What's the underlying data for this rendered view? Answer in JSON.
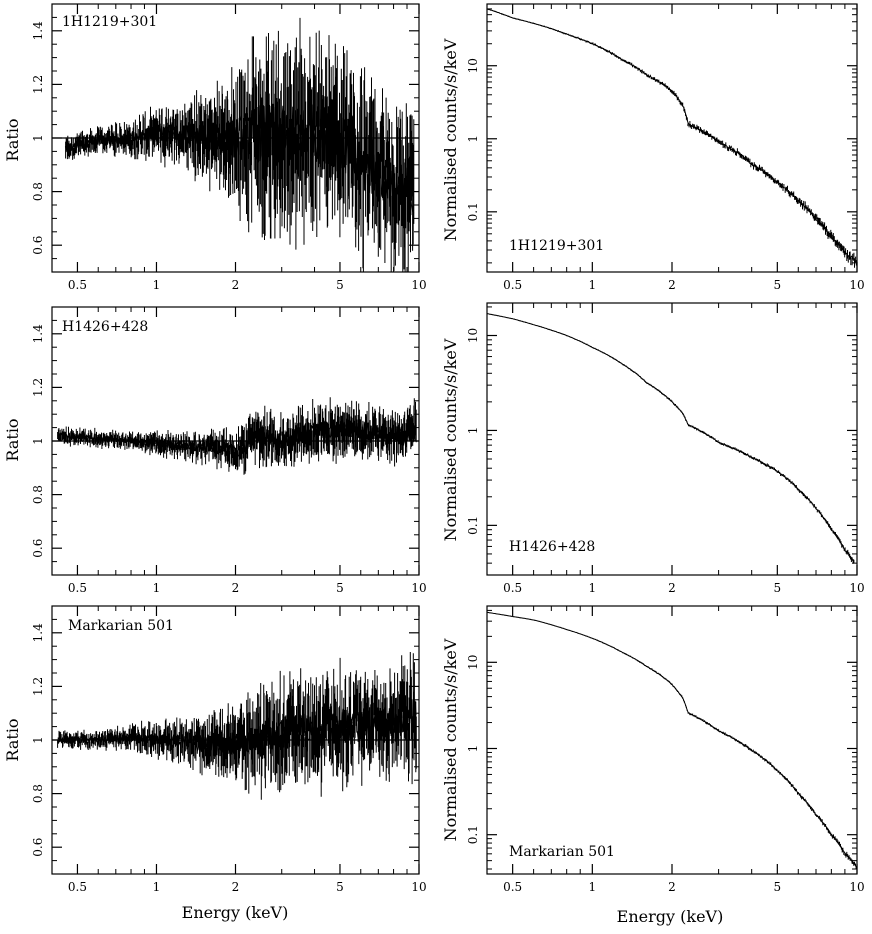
{
  "chart_data": [
    {
      "id": "ratio-1h1219",
      "type": "line",
      "source": "1H1219+301",
      "ylabel": "Ratio",
      "xlabel": "",
      "xscale": "log",
      "xlim": [
        0.4,
        10
      ],
      "ylim": [
        0.5,
        1.5
      ],
      "xticks": [
        {
          "v": 0.5,
          "label": "0.5"
        },
        {
          "v": 1,
          "label": "1"
        },
        {
          "v": 2,
          "label": "2"
        },
        {
          "v": 5,
          "label": "5"
        },
        {
          "v": 10,
          "label": "10"
        }
      ],
      "yticks": [
        {
          "v": 0.6,
          "label": "0.6"
        },
        {
          "v": 0.8,
          "label": "0.8"
        },
        {
          "v": 1,
          "label": "1"
        },
        {
          "v": 1.2,
          "label": "1.2"
        },
        {
          "v": 1.4,
          "label": "1.4"
        }
      ],
      "reference_line": 1,
      "series": [
        {
          "name": "ratio",
          "x": [
            0.45,
            0.6,
            0.8,
            1.0,
            1.3,
            1.6,
            2.0,
            2.5,
            3.0,
            4.0,
            5.0,
            6.0,
            7.0,
            8.0,
            9.0,
            9.6
          ],
          "y": [
            0.96,
            0.99,
            1.0,
            1.02,
            1.01,
            1.0,
            1.0,
            1.02,
            1.0,
            1.02,
            0.98,
            0.9,
            0.86,
            0.82,
            0.8,
            0.78
          ],
          "scatter": [
            0.03,
            0.03,
            0.04,
            0.06,
            0.08,
            0.11,
            0.16,
            0.22,
            0.24,
            0.22,
            0.22,
            0.22,
            0.18,
            0.18,
            0.2,
            0.2
          ]
        }
      ]
    },
    {
      "id": "spec-1h1219",
      "type": "line",
      "source": "1H1219+301",
      "ylabel": "Normalised counts/s/keV",
      "xlabel": "",
      "xscale": "log",
      "yscale": "log",
      "xlim": [
        0.4,
        10
      ],
      "ylim": [
        0.015,
        70
      ],
      "xticks": [
        {
          "v": 0.5,
          "label": "0.5"
        },
        {
          "v": 1,
          "label": "1"
        },
        {
          "v": 2,
          "label": "2"
        },
        {
          "v": 5,
          "label": "5"
        },
        {
          "v": 10,
          "label": "10"
        }
      ],
      "yticks": [
        {
          "v": 0.1,
          "label": "0.1"
        },
        {
          "v": 1,
          "label": "1"
        },
        {
          "v": 10,
          "label": "10"
        }
      ],
      "series": [
        {
          "name": "counts",
          "x": [
            0.4,
            0.5,
            0.6,
            0.8,
            1.0,
            1.3,
            1.6,
            2.0,
            2.2,
            2.3,
            3.0,
            4.0,
            5.0,
            6.0,
            7.0,
            8.0,
            9.0,
            10.0
          ],
          "y": [
            60,
            45,
            38,
            27,
            20,
            12,
            7.5,
            4.5,
            2.8,
            1.6,
            0.9,
            0.45,
            0.25,
            0.14,
            0.08,
            0.045,
            0.028,
            0.02
          ],
          "scatter": [
            0.01,
            0.01,
            0.01,
            0.015,
            0.02,
            0.025,
            0.03,
            0.04,
            0.05,
            0.05,
            0.05,
            0.06,
            0.06,
            0.07,
            0.08,
            0.09,
            0.1,
            0.1
          ]
        }
      ]
    },
    {
      "id": "ratio-h1426",
      "type": "line",
      "source": "H1426+428",
      "ylabel": "Ratio",
      "xlabel": "",
      "xscale": "log",
      "xlim": [
        0.4,
        10
      ],
      "ylim": [
        0.5,
        1.5
      ],
      "xticks": [
        {
          "v": 0.5,
          "label": "0.5"
        },
        {
          "v": 1,
          "label": "1"
        },
        {
          "v": 2,
          "label": "2"
        },
        {
          "v": 5,
          "label": "5"
        },
        {
          "v": 10,
          "label": "10"
        }
      ],
      "yticks": [
        {
          "v": 0.6,
          "label": "0.6"
        },
        {
          "v": 0.8,
          "label": "0.8"
        },
        {
          "v": 1,
          "label": "1"
        },
        {
          "v": 1.2,
          "label": "1.2"
        },
        {
          "v": 1.4,
          "label": "1.4"
        }
      ],
      "reference_line": 1,
      "series": [
        {
          "name": "ratio",
          "x": [
            0.42,
            0.6,
            0.8,
            1.0,
            1.3,
            1.7,
            2.0,
            2.5,
            3.0,
            4.0,
            5.0,
            6.0,
            7.0,
            8.0,
            9.0,
            9.8
          ],
          "y": [
            1.02,
            1.01,
            1.0,
            0.99,
            0.98,
            0.97,
            0.96,
            1.02,
            1.0,
            1.04,
            1.05,
            1.04,
            1.03,
            1.02,
            1.02,
            1.05
          ],
          "scatter": [
            0.02,
            0.02,
            0.02,
            0.03,
            0.03,
            0.04,
            0.05,
            0.07,
            0.06,
            0.07,
            0.07,
            0.07,
            0.06,
            0.06,
            0.06,
            0.07
          ]
        }
      ]
    },
    {
      "id": "spec-h1426",
      "type": "line",
      "source": "H1426+428",
      "ylabel": "Normalised counts/s/keV",
      "xlabel": "",
      "xscale": "log",
      "yscale": "log",
      "xlim": [
        0.4,
        10
      ],
      "ylim": [
        0.03,
        22
      ],
      "xticks": [
        {
          "v": 0.5,
          "label": "0.5"
        },
        {
          "v": 1,
          "label": "1"
        },
        {
          "v": 2,
          "label": "2"
        },
        {
          "v": 5,
          "label": "5"
        },
        {
          "v": 10,
          "label": "10"
        }
      ],
      "yticks": [
        {
          "v": 0.1,
          "label": "0.1"
        },
        {
          "v": 1,
          "label": "1"
        },
        {
          "v": 10,
          "label": "10"
        }
      ],
      "series": [
        {
          "name": "counts",
          "x": [
            0.4,
            0.5,
            0.6,
            0.8,
            1.0,
            1.3,
            1.6,
            2.0,
            2.2,
            2.3,
            3.0,
            4.0,
            5.0,
            6.0,
            7.0,
            8.0,
            9.0,
            9.8
          ],
          "y": [
            17,
            15,
            13,
            10,
            7.5,
            5,
            3.2,
            2.0,
            1.5,
            1.15,
            0.75,
            0.52,
            0.37,
            0.24,
            0.15,
            0.09,
            0.055,
            0.04
          ],
          "scatter": [
            0.005,
            0.005,
            0.006,
            0.007,
            0.008,
            0.01,
            0.012,
            0.015,
            0.015,
            0.016,
            0.018,
            0.02,
            0.022,
            0.024,
            0.026,
            0.03,
            0.035,
            0.04
          ]
        }
      ]
    },
    {
      "id": "ratio-mrk501",
      "type": "line",
      "source": "Markarian 501",
      "ylabel": "Ratio",
      "xlabel": "Energy (keV)",
      "xscale": "log",
      "xlim": [
        0.4,
        10
      ],
      "ylim": [
        0.5,
        1.5
      ],
      "xticks": [
        {
          "v": 0.5,
          "label": "0.5"
        },
        {
          "v": 1,
          "label": "1"
        },
        {
          "v": 2,
          "label": "2"
        },
        {
          "v": 5,
          "label": "5"
        },
        {
          "v": 10,
          "label": "10"
        }
      ],
      "yticks": [
        {
          "v": 0.6,
          "label": "0.6"
        },
        {
          "v": 0.8,
          "label": "0.8"
        },
        {
          "v": 1,
          "label": "1"
        },
        {
          "v": 1.2,
          "label": "1.2"
        },
        {
          "v": 1.4,
          "label": "1.4"
        }
      ],
      "reference_line": 1,
      "series": [
        {
          "name": "ratio",
          "x": [
            0.42,
            0.6,
            0.8,
            1.0,
            1.3,
            1.6,
            2.0,
            2.5,
            3.0,
            4.0,
            5.0,
            6.0,
            7.0,
            8.0,
            9.0,
            9.8
          ],
          "y": [
            1.0,
            1.0,
            1.01,
            1.0,
            1.0,
            0.98,
            0.98,
            1.0,
            1.02,
            1.04,
            1.05,
            1.06,
            1.06,
            1.07,
            1.08,
            1.1
          ],
          "scatter": [
            0.02,
            0.02,
            0.03,
            0.04,
            0.05,
            0.08,
            0.1,
            0.12,
            0.13,
            0.13,
            0.13,
            0.12,
            0.12,
            0.12,
            0.13,
            0.14
          ]
        }
      ]
    },
    {
      "id": "spec-mrk501",
      "type": "line",
      "source": "Markarian 501",
      "ylabel": "Normalised counts/s/keV",
      "xlabel": "Energy (keV)",
      "xscale": "log",
      "yscale": "log",
      "xlim": [
        0.4,
        10
      ],
      "ylim": [
        0.035,
        45
      ],
      "xticks": [
        {
          "v": 0.5,
          "label": "0.5"
        },
        {
          "v": 1,
          "label": "1"
        },
        {
          "v": 2,
          "label": "2"
        },
        {
          "v": 5,
          "label": "5"
        },
        {
          "v": 10,
          "label": "10"
        }
      ],
      "yticks": [
        {
          "v": 0.1,
          "label": "0.1"
        },
        {
          "v": 1,
          "label": "1"
        },
        {
          "v": 10,
          "label": "10"
        }
      ],
      "series": [
        {
          "name": "counts",
          "x": [
            0.4,
            0.5,
            0.6,
            0.8,
            1.0,
            1.3,
            1.6,
            2.0,
            2.2,
            2.3,
            3.0,
            4.0,
            5.0,
            6.0,
            7.0,
            8.0,
            9.0,
            10.0
          ],
          "y": [
            38,
            34,
            31,
            24,
            19,
            13,
            9,
            5.5,
            3.8,
            2.6,
            1.6,
            0.95,
            0.55,
            0.3,
            0.17,
            0.1,
            0.06,
            0.042
          ],
          "scatter": [
            0.005,
            0.005,
            0.005,
            0.006,
            0.007,
            0.009,
            0.012,
            0.015,
            0.016,
            0.017,
            0.02,
            0.022,
            0.025,
            0.028,
            0.03,
            0.035,
            0.04,
            0.045
          ]
        }
      ]
    }
  ]
}
